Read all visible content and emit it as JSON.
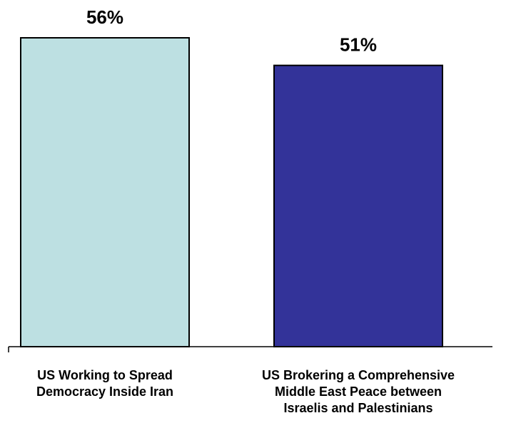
{
  "chart_data": {
    "type": "bar",
    "categories": [
      [
        "US Working to Spread",
        "Democracy Inside Iran"
      ],
      [
        "US Brokering a Comprehensive",
        "Middle East Peace between",
        "Israelis and Palestinians"
      ]
    ],
    "values": [
      56,
      51
    ],
    "value_labels": [
      "56%",
      "51%"
    ],
    "colors": [
      "#bde0e2",
      "#333399"
    ],
    "ylim": [
      0,
      56
    ],
    "grid": false,
    "legend": "none"
  }
}
